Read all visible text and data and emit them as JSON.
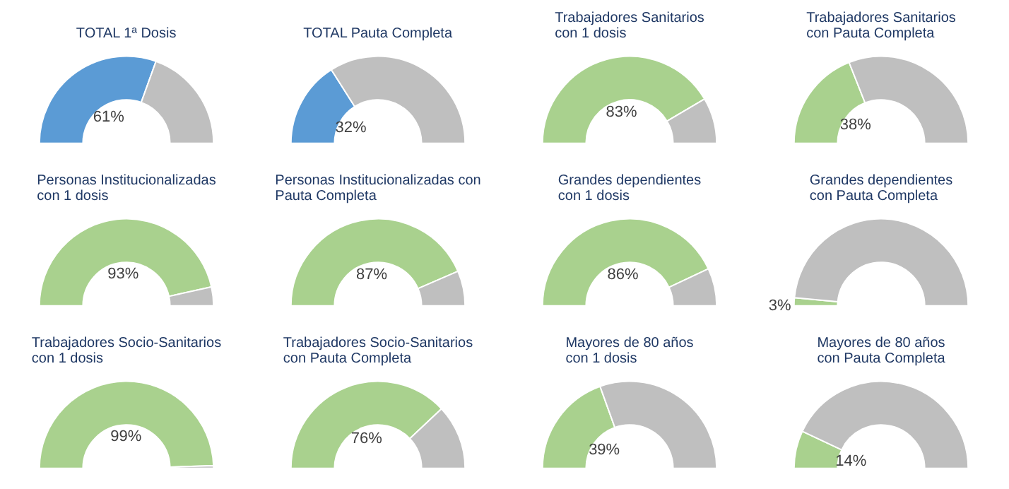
{
  "chart_data": [
    {
      "type": "donut",
      "title": "TOTAL 1ª Dosis",
      "categories": [
        null,
        null
      ],
      "values": [
        61,
        39
      ],
      "colors": [
        "#5b9bd5",
        "#bfbfbf"
      ],
      "value_labels": [
        "61%",
        null
      ]
    },
    {
      "type": "donut",
      "title": "TOTAL Pauta Completa",
      "categories": [
        null,
        null
      ],
      "values": [
        32,
        68
      ],
      "colors": [
        "#5b9bd5",
        "#bfbfbf"
      ],
      "value_labels": [
        "32%",
        null
      ]
    },
    {
      "type": "donut",
      "title": "Trabajadores Sanitarios\ncon 1 dosis",
      "categories": [
        null,
        null
      ],
      "values": [
        83,
        17
      ],
      "colors": [
        "#a9d18e",
        "#bfbfbf"
      ],
      "value_labels": [
        "83%",
        null
      ]
    },
    {
      "type": "donut",
      "title": "Trabajadores Sanitarios\ncon Pauta Completa",
      "categories": [
        null,
        null
      ],
      "values": [
        38,
        62
      ],
      "colors": [
        "#a9d18e",
        "#bfbfbf"
      ],
      "value_labels": [
        "38%",
        null
      ]
    },
    {
      "type": "donut",
      "title": "Personas Institucionalizadas\ncon 1 dosis",
      "categories": [
        null,
        null
      ],
      "values": [
        93,
        7
      ],
      "colors": [
        "#a9d18e",
        "#bfbfbf"
      ],
      "value_labels": [
        "93%",
        null
      ]
    },
    {
      "type": "donut",
      "title": "Personas Institucionalizadas con\nPauta Completa",
      "categories": [
        null,
        null
      ],
      "values": [
        87,
        13
      ],
      "colors": [
        "#a9d18e",
        "#bfbfbf"
      ],
      "value_labels": [
        "87%",
        null
      ]
    },
    {
      "type": "donut",
      "title": "Grandes dependientes\ncon 1 dosis",
      "categories": [
        null,
        null
      ],
      "values": [
        86,
        14
      ],
      "colors": [
        "#a9d18e",
        "#bfbfbf"
      ],
      "value_labels": [
        "86%",
        null
      ]
    },
    {
      "type": "donut",
      "title": "Grandes dependientes\ncon Pauta Completa",
      "categories": [
        null,
        null
      ],
      "values": [
        3,
        97
      ],
      "colors": [
        "#a9d18e",
        "#bfbfbf"
      ],
      "value_labels": [
        "3%",
        null
      ]
    },
    {
      "type": "donut",
      "title": "Trabajadores Socio-Sanitarios\ncon 1 dosis",
      "categories": [
        null,
        null
      ],
      "values": [
        99,
        1
      ],
      "colors": [
        "#a9d18e",
        "#bfbfbf"
      ],
      "value_labels": [
        "99%",
        null
      ]
    },
    {
      "type": "donut",
      "title": "Trabajadores Socio-Sanitarios\ncon Pauta Completa",
      "categories": [
        null,
        null
      ],
      "values": [
        76,
        24
      ],
      "colors": [
        "#a9d18e",
        "#bfbfbf"
      ],
      "value_labels": [
        "76%",
        null
      ]
    },
    {
      "type": "donut",
      "title": "Mayores de 80 años\ncon 1 dosis",
      "categories": [
        null,
        null
      ],
      "values": [
        39,
        61
      ],
      "colors": [
        "#a9d18e",
        "#bfbfbf"
      ],
      "value_labels": [
        "39%",
        null
      ]
    },
    {
      "type": "donut",
      "title": "Mayores de 80 años\ncon Pauta Completa",
      "categories": [
        null,
        null
      ],
      "values": [
        14,
        86
      ],
      "colors": [
        "#a9d18e",
        "#bfbfbf"
      ],
      "value_labels": [
        "14%",
        null
      ]
    }
  ]
}
